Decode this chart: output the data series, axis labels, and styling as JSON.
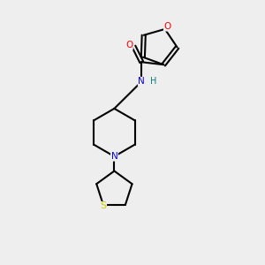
{
  "background_color": "#eeeeee",
  "bond_color": "#000000",
  "atom_colors": {
    "O": "#ff0000",
    "N": "#0000ff",
    "S": "#cccc00",
    "H": "#008080",
    "C": "#000000"
  },
  "figsize": [
    3.0,
    3.0
  ],
  "dpi": 100,
  "lw": 1.5
}
